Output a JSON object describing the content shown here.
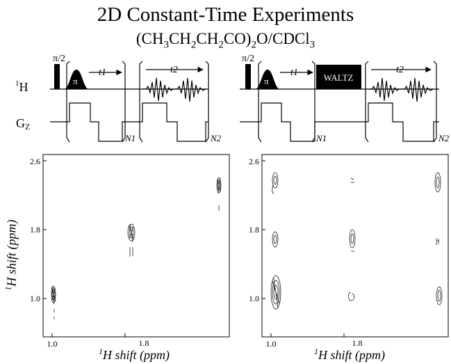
{
  "title": "2D Constant-Time Experiments",
  "subtitle": {
    "parts": [
      "(CH",
      "3",
      "CH",
      "2",
      "CH",
      "2",
      "CO)",
      "2",
      "O/CDCl",
      "3"
    ]
  },
  "pulse_sequences": [
    {
      "pulse_90_label": "π/2",
      "pulse_180_label": "π",
      "t1_label": "t1",
      "t2_label": "t2",
      "channel_h_label": "1H",
      "channel_g_label": "GZ",
      "loop1_label": "N1",
      "loop2_label": "N2"
    },
    {
      "pulse_90_label": "π/2",
      "pulse_180_label": "π",
      "t1_label": "t1",
      "t2_label": "t2",
      "block_label": "WALTZ",
      "loop1_label": "N1",
      "loop2_label": "N2"
    }
  ],
  "spectra": [
    {
      "y_ticks": [
        "2.6",
        "1.8",
        "1.0"
      ],
      "x_ticks": [
        "1.0",
        "1.8"
      ],
      "xlabel_sup": "1",
      "xlabel_text": "H shift (ppm)",
      "ylabel_sup": "1",
      "ylabel_text": "H shift (ppm)"
    },
    {
      "y_ticks": [
        "2.6",
        "1.8",
        "1.0"
      ],
      "x_ticks": [
        "1.0",
        "1.8"
      ],
      "xlabel_sup": "1",
      "xlabel_text": "H shift (ppm)"
    }
  ]
}
